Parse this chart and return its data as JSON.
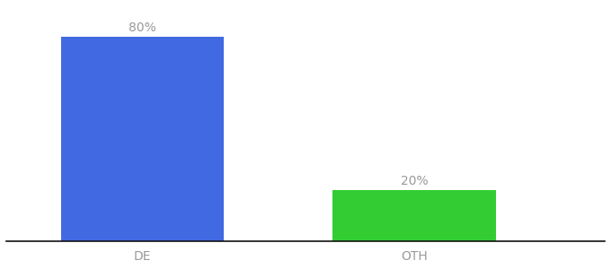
{
  "categories": [
    "DE",
    "OTH"
  ],
  "values": [
    80,
    20
  ],
  "bar_colors": [
    "#4169e1",
    "#33cc33"
  ],
  "label_texts": [
    "80%",
    "20%"
  ],
  "background_color": "#ffffff",
  "text_color": "#999999",
  "bar_label_fontsize": 10,
  "tick_label_fontsize": 10,
  "ylim": [
    0,
    92
  ],
  "figsize": [
    6.8,
    3.0
  ],
  "dpi": 100,
  "bar_positions": [
    0,
    1
  ],
  "bar_width": 0.6,
  "xlim": [
    -0.5,
    1.7
  ]
}
